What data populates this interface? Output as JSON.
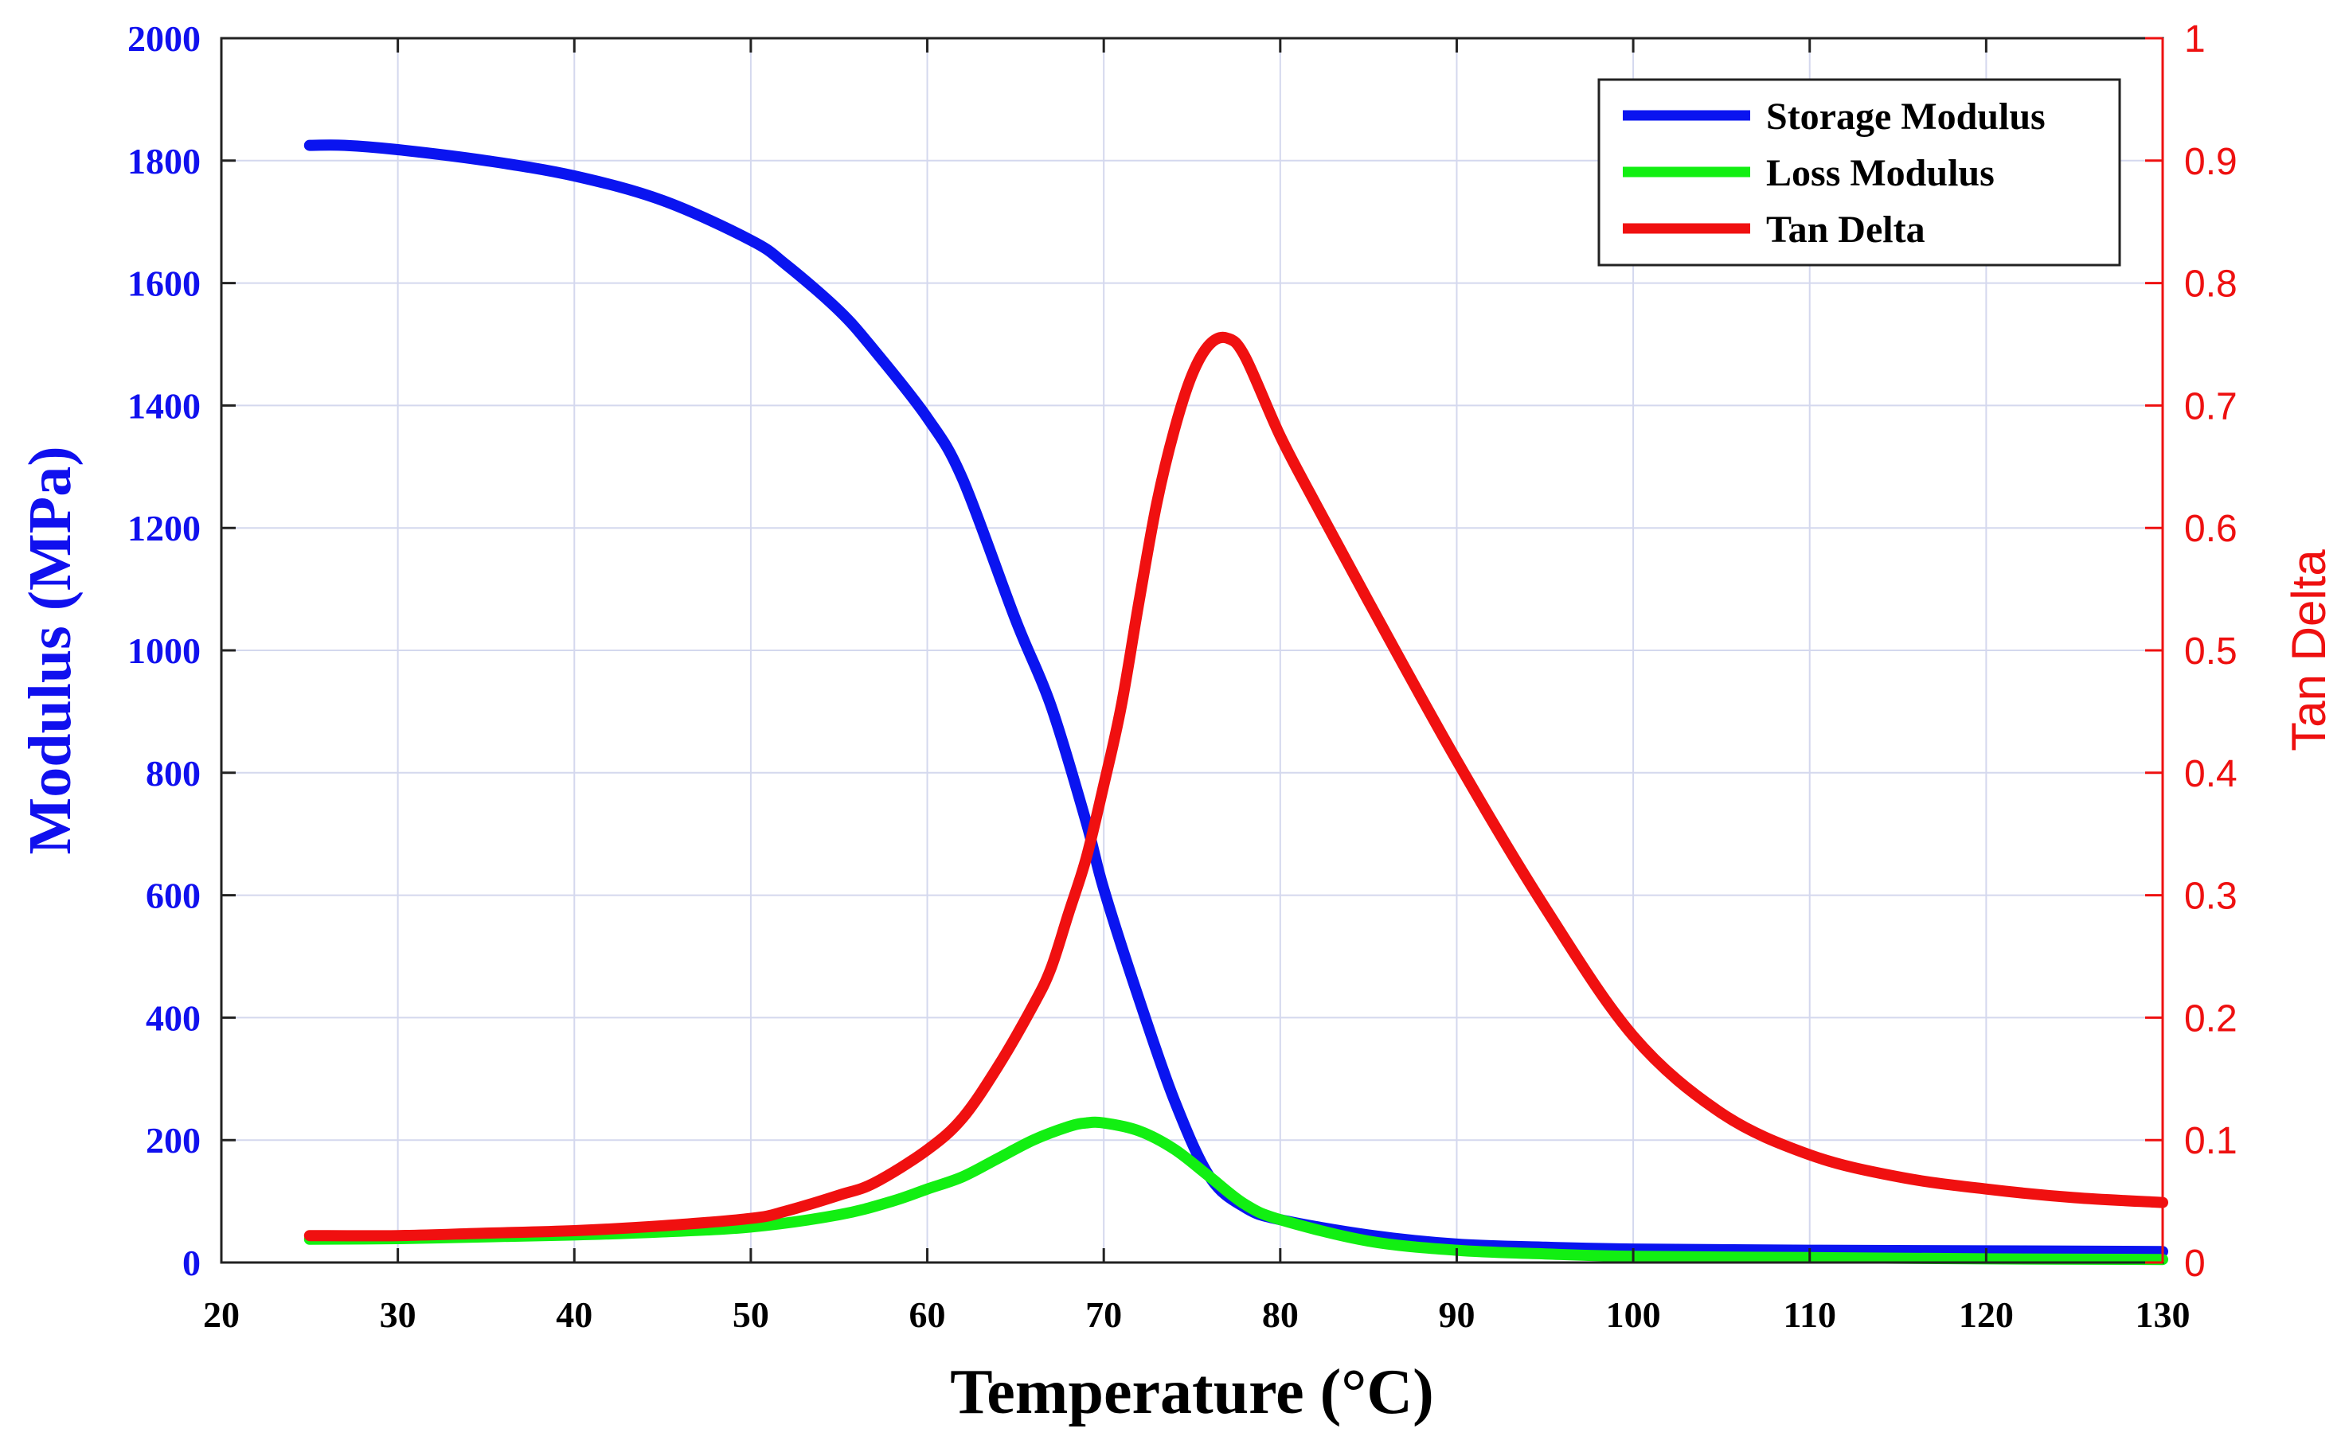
{
  "chart_data": {
    "type": "line",
    "xlabel": "Temperature (°C)",
    "ylabel": "Modulus (MPa)",
    "y2label": "Tan Delta",
    "xlim": [
      20,
      130
    ],
    "ylim": [
      0,
      2000
    ],
    "y2lim": [
      0,
      1
    ],
    "x_ticks": [
      "20",
      "30",
      "40",
      "50",
      "60",
      "70",
      "80",
      "90",
      "100",
      "110",
      "120",
      "130"
    ],
    "y_ticks": [
      "0",
      "200",
      "400",
      "600",
      "800",
      "1000",
      "1200",
      "1400",
      "1600",
      "1800",
      "2000"
    ],
    "y2_ticks": [
      "0",
      "0.1",
      "0.2",
      "0.3",
      "0.4",
      "0.5",
      "0.6",
      "0.7",
      "0.8",
      "0.9",
      "1"
    ],
    "grid": true,
    "legend_position": "top-right",
    "colors": {
      "left_axis": "#1010ee",
      "right_axis": "#ee1010",
      "grid": "#d4d8ee",
      "axis": "#222222"
    },
    "series": [
      {
        "name": "Storage Modulus",
        "axis": "left",
        "color": "#0a14f0",
        "x": [
          25,
          27,
          30,
          35,
          40,
          45,
          50,
          52,
          55,
          57,
          60,
          62,
          65,
          67,
          69,
          70,
          72,
          74,
          76,
          78,
          80,
          85,
          90,
          95,
          100,
          110,
          120,
          130
        ],
        "y": [
          1825,
          1825,
          1818,
          1800,
          1775,
          1735,
          1670,
          1630,
          1555,
          1490,
          1380,
          1280,
          1050,
          910,
          720,
          610,
          430,
          265,
          140,
          90,
          70,
          45,
          30,
          25,
          22,
          20,
          19,
          18
        ]
      },
      {
        "name": "Loss Modulus",
        "axis": "left",
        "color": "#12ef12",
        "x": [
          25,
          30,
          35,
          40,
          45,
          50,
          55,
          58,
          60,
          62,
          64,
          66,
          68,
          69,
          70,
          72,
          74,
          76,
          78,
          80,
          85,
          90,
          95,
          100,
          110,
          120,
          130
        ],
        "y": [
          38,
          39,
          42,
          45,
          50,
          58,
          78,
          100,
          120,
          140,
          170,
          200,
          222,
          228,
          228,
          215,
          185,
          140,
          95,
          70,
          35,
          20,
          14,
          10,
          8,
          6,
          5
        ]
      },
      {
        "name": "Tan Delta",
        "axis": "right",
        "color": "#f01010",
        "x": [
          25,
          30,
          35,
          40,
          45,
          50,
          52,
          55,
          57,
          60,
          62,
          64,
          66,
          67,
          68,
          69,
          70,
          71,
          72,
          73,
          74,
          75,
          76,
          77,
          78,
          80,
          82,
          85,
          90,
          95,
          100,
          105,
          110,
          115,
          120,
          125,
          130
        ],
        "y": [
          0.022,
          0.022,
          0.024,
          0.026,
          0.03,
          0.036,
          0.042,
          0.055,
          0.065,
          0.092,
          0.118,
          0.16,
          0.21,
          0.24,
          0.285,
          0.33,
          0.39,
          0.455,
          0.54,
          0.62,
          0.68,
          0.725,
          0.75,
          0.755,
          0.74,
          0.675,
          0.62,
          0.54,
          0.41,
          0.29,
          0.185,
          0.122,
          0.088,
          0.07,
          0.06,
          0.053,
          0.049
        ]
      }
    ]
  }
}
